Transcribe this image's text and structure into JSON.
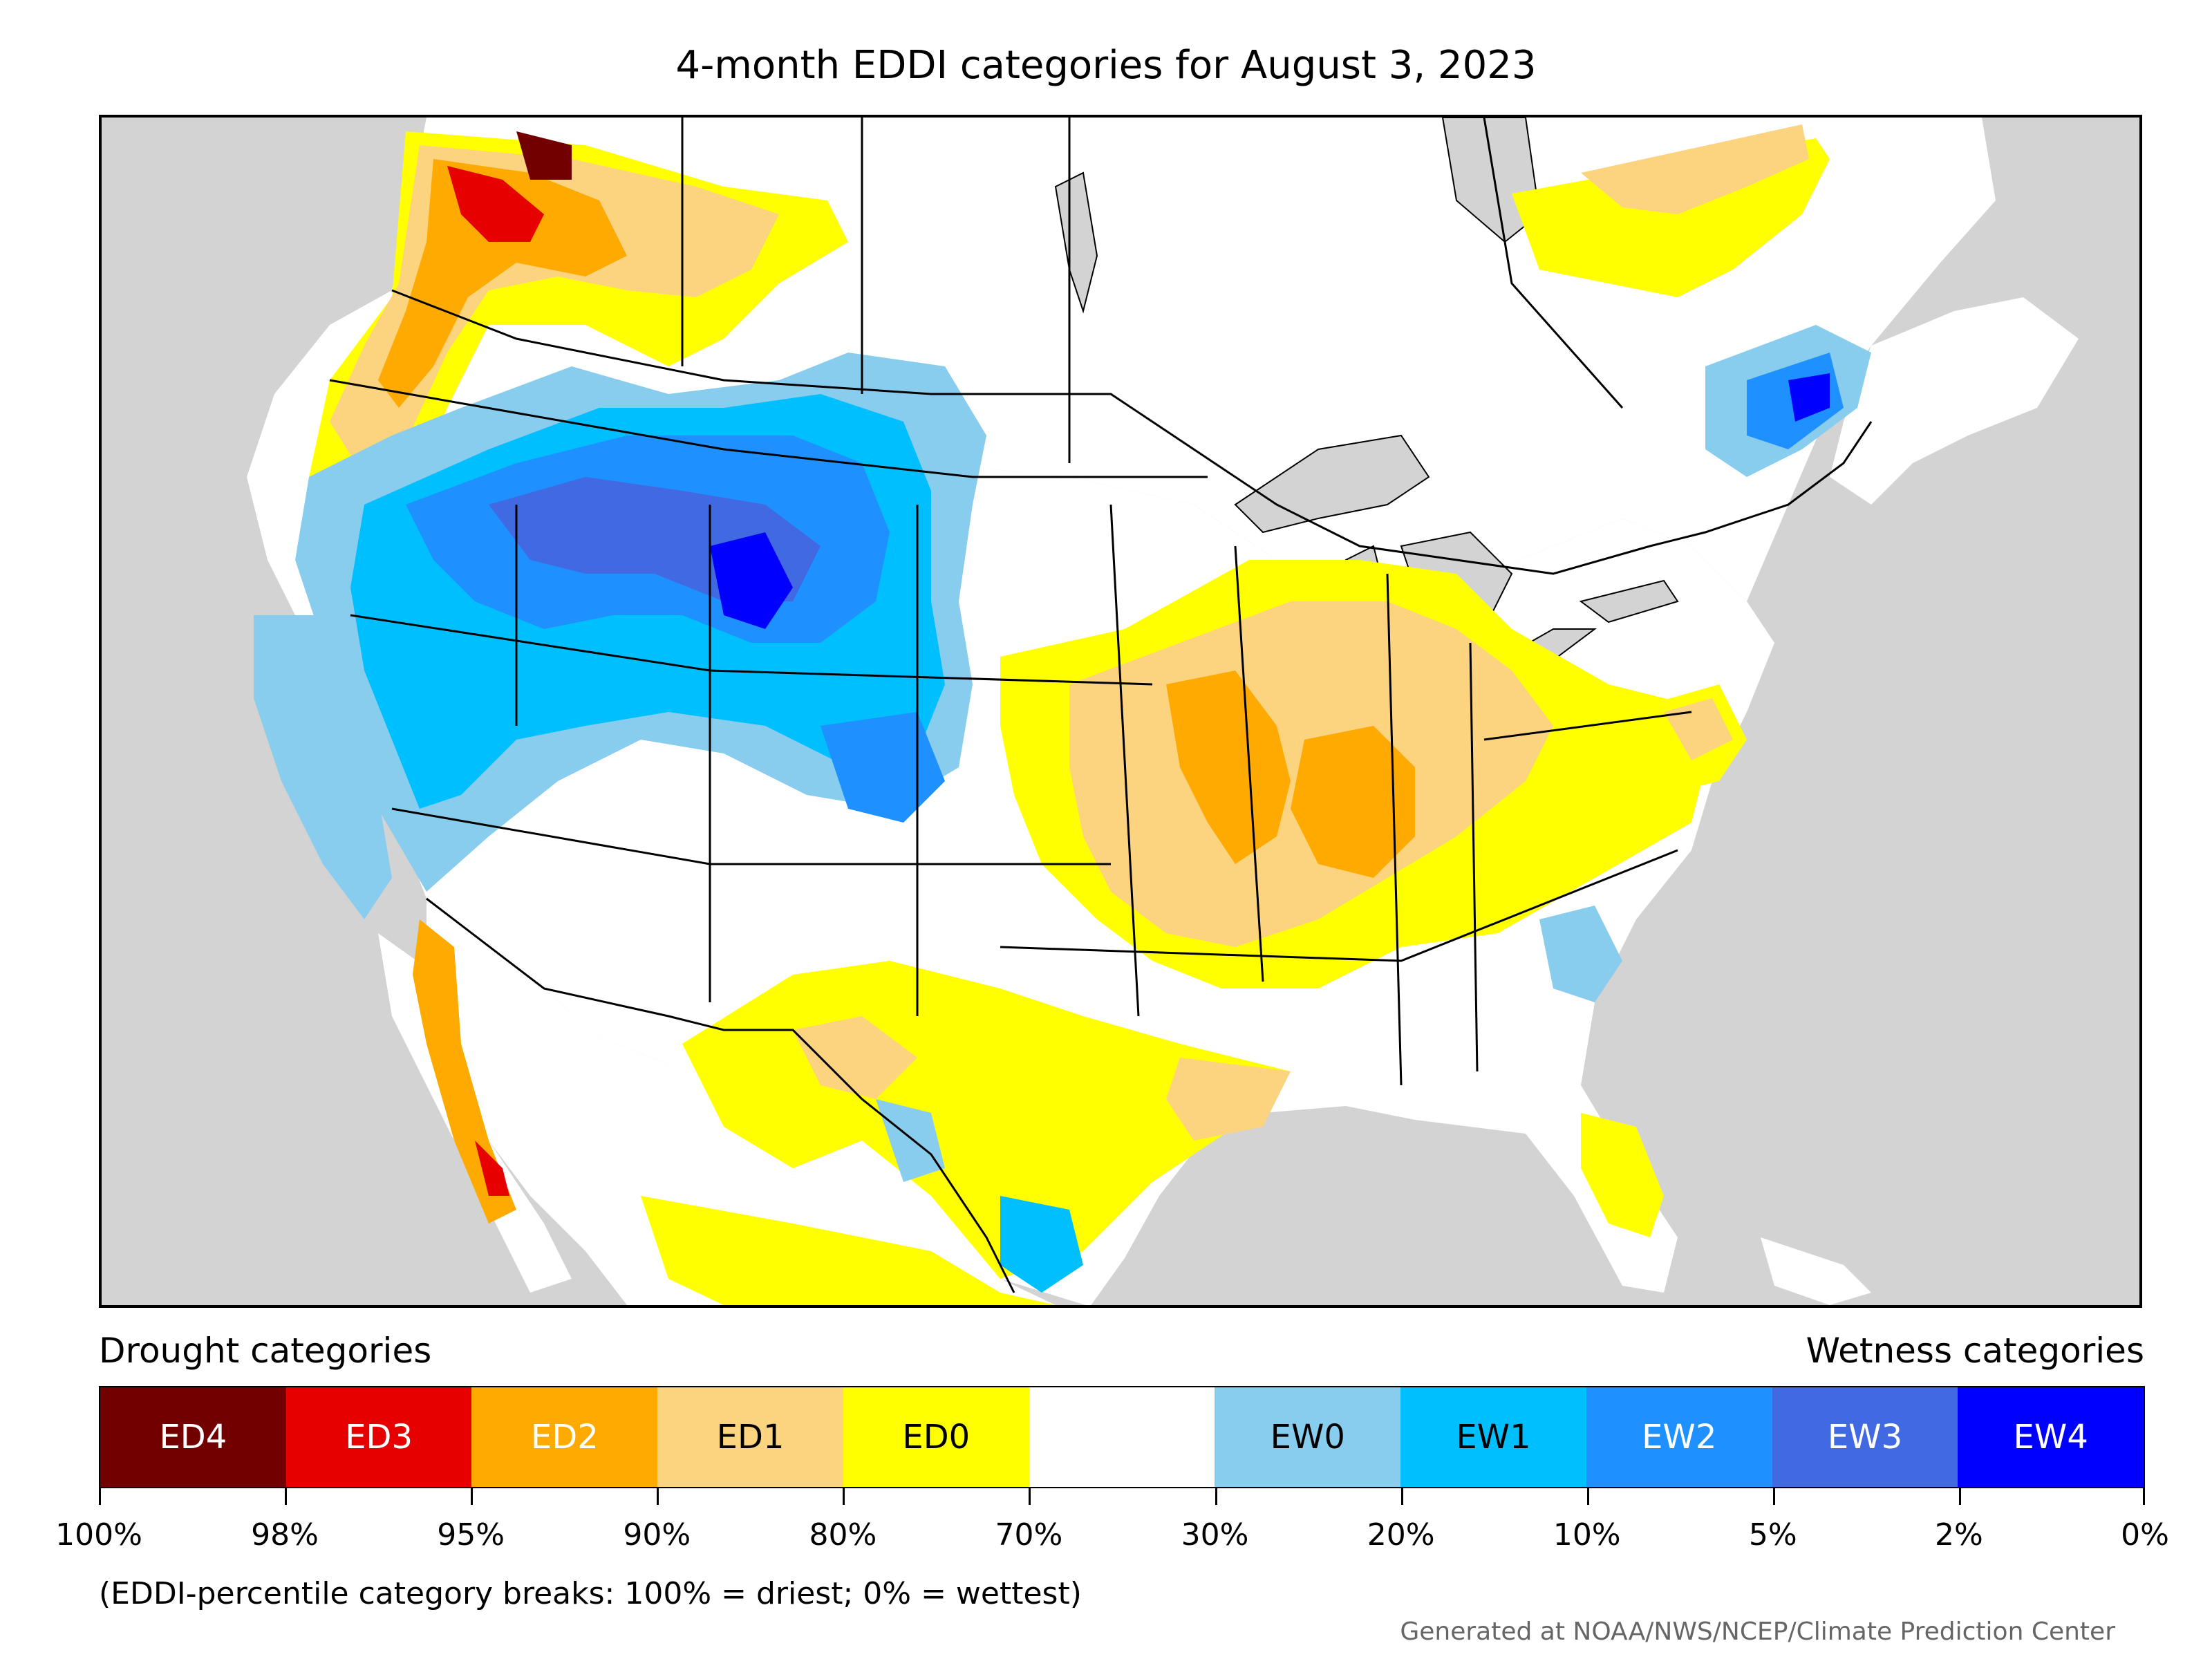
{
  "title": "4-month EDDI categories for August 3, 2023",
  "legend": {
    "drought_heading": "Drought categories",
    "wetness_heading": "Wetness categories",
    "categories": [
      {
        "label": "ED4",
        "color": "#730000",
        "text_color": "#ffffff"
      },
      {
        "label": "ED3",
        "color": "#e60000",
        "text_color": "#ffffff"
      },
      {
        "label": "ED2",
        "color": "#ffaa00",
        "text_color": "#ffffff"
      },
      {
        "label": "ED1",
        "color": "#fcd37f",
        "text_color": "#000000"
      },
      {
        "label": "ED0",
        "color": "#ffff00",
        "text_color": "#000000"
      },
      {
        "label": "",
        "color": "#ffffff",
        "text_color": "#000000"
      },
      {
        "label": "EW0",
        "color": "#88ccee",
        "text_color": "#000000"
      },
      {
        "label": "EW1",
        "color": "#00bfff",
        "text_color": "#000000"
      },
      {
        "label": "EW2",
        "color": "#1e90ff",
        "text_color": "#ffffff"
      },
      {
        "label": "EW3",
        "color": "#4169e1",
        "text_color": "#ffffff"
      },
      {
        "label": "EW4",
        "color": "#0000ff",
        "text_color": "#ffffff"
      }
    ],
    "breaks": [
      "100%",
      "98%",
      "95%",
      "90%",
      "80%",
      "70%",
      "30%",
      "20%",
      "10%",
      "5%",
      "2%",
      "0%"
    ],
    "note": "(EDDI-percentile category breaks: 100% = driest; 0% = wettest)"
  },
  "credit": "Generated at NOAA/NWS/NCEP/Climate Prediction Center",
  "map": {
    "ocean_color": "#d3d3d3",
    "land_color": "#ffffff",
    "border_color": "#000000"
  }
}
